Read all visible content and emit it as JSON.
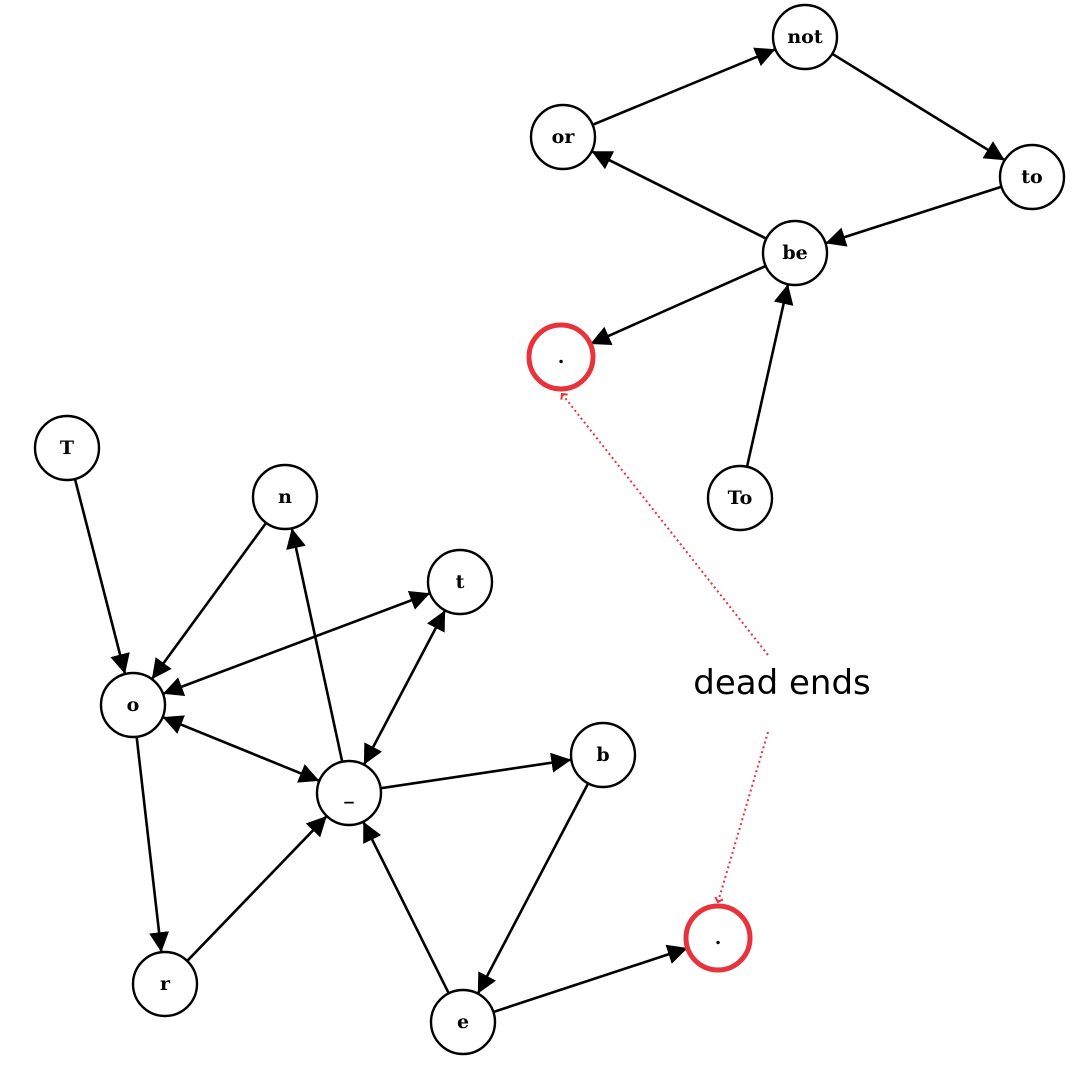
{
  "colors": {
    "node_stroke": "#000000",
    "dead_end": "#e8323c",
    "edge": "#000000",
    "annotation_line": "#e8323c"
  },
  "word_graph": {
    "nodes": [
      {
        "id": "not",
        "label": "not"
      },
      {
        "id": "or",
        "label": "or"
      },
      {
        "id": "to",
        "label": "to"
      },
      {
        "id": "be",
        "label": "be"
      },
      {
        "id": "dot",
        "label": ".",
        "dead_end": true
      },
      {
        "id": "To",
        "label": "To"
      }
    ],
    "edges": [
      {
        "from": "or",
        "to": "not"
      },
      {
        "from": "not",
        "to": "to"
      },
      {
        "from": "to",
        "to": "be"
      },
      {
        "from": "be",
        "to": "or"
      },
      {
        "from": "be",
        "to": "dot"
      },
      {
        "from": "To",
        "to": "be"
      }
    ]
  },
  "char_graph": {
    "nodes": [
      {
        "id": "T",
        "label": "T"
      },
      {
        "id": "n",
        "label": "n"
      },
      {
        "id": "t",
        "label": "t"
      },
      {
        "id": "o",
        "label": "o"
      },
      {
        "id": "sp",
        "label": "_"
      },
      {
        "id": "b",
        "label": "b"
      },
      {
        "id": "r",
        "label": "r"
      },
      {
        "id": "e",
        "label": "e"
      },
      {
        "id": "dot2",
        "label": ".",
        "dead_end": true
      }
    ],
    "edges": [
      {
        "from": "T",
        "to": "o"
      },
      {
        "from": "n",
        "to": "o"
      },
      {
        "from": "o",
        "to": "t",
        "bidirectional": true
      },
      {
        "from": "o",
        "to": "sp",
        "bidirectional": true
      },
      {
        "from": "t",
        "to": "sp",
        "bidirectional": true
      },
      {
        "from": "sp",
        "to": "n"
      },
      {
        "from": "sp",
        "to": "b"
      },
      {
        "from": "o",
        "to": "r"
      },
      {
        "from": "r",
        "to": "sp"
      },
      {
        "from": "b",
        "to": "e"
      },
      {
        "from": "e",
        "to": "sp"
      },
      {
        "from": "e",
        "to": "dot2"
      }
    ]
  },
  "annotation": {
    "text": "dead ends"
  }
}
